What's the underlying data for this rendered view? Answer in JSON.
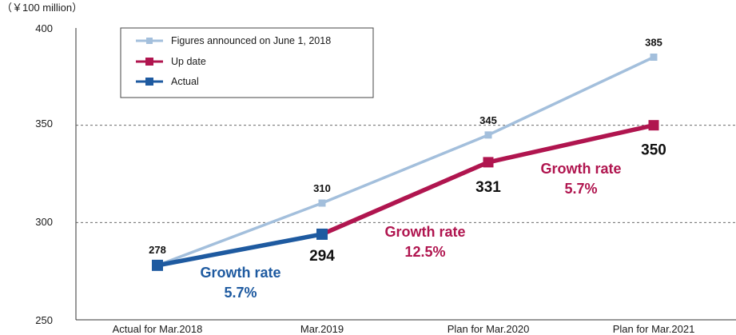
{
  "chart_data": {
    "type": "line",
    "unit_label": "（￥100 million）",
    "categories": [
      "Actual for Mar.2018",
      "Mar.2019",
      "Plan for Mar.2020",
      "Plan for Mar.2021"
    ],
    "ylim": [
      250,
      400
    ],
    "yticks": [
      "250",
      "300",
      "350",
      "400"
    ],
    "gridlines": [
      300,
      350
    ],
    "series": [
      {
        "name": "Figures announced on June 1, 2018",
        "color": "#a3bfdc",
        "values": [
          278,
          310,
          345,
          385
        ],
        "labels": [
          "",
          "310",
          "345",
          "385"
        ]
      },
      {
        "name": "Up date",
        "color": "#b0154f",
        "values": [
          null,
          294,
          331,
          350
        ],
        "labels": [
          "",
          "",
          "331",
          "350"
        ]
      },
      {
        "name": "Actual",
        "color": "#1e5aa0",
        "values": [
          278,
          294,
          null,
          null
        ],
        "labels": [
          "278",
          "294",
          "",
          ""
        ]
      }
    ],
    "annotations": [
      {
        "line1": "Growth rate",
        "line2": "5.7%",
        "color": "#1e5aa0"
      },
      {
        "line1": "Growth rate",
        "line2": "12.5%",
        "color": "#b0154f"
      },
      {
        "line1": "Growth rate",
        "line2": "5.7%",
        "color": "#b0154f"
      }
    ]
  }
}
